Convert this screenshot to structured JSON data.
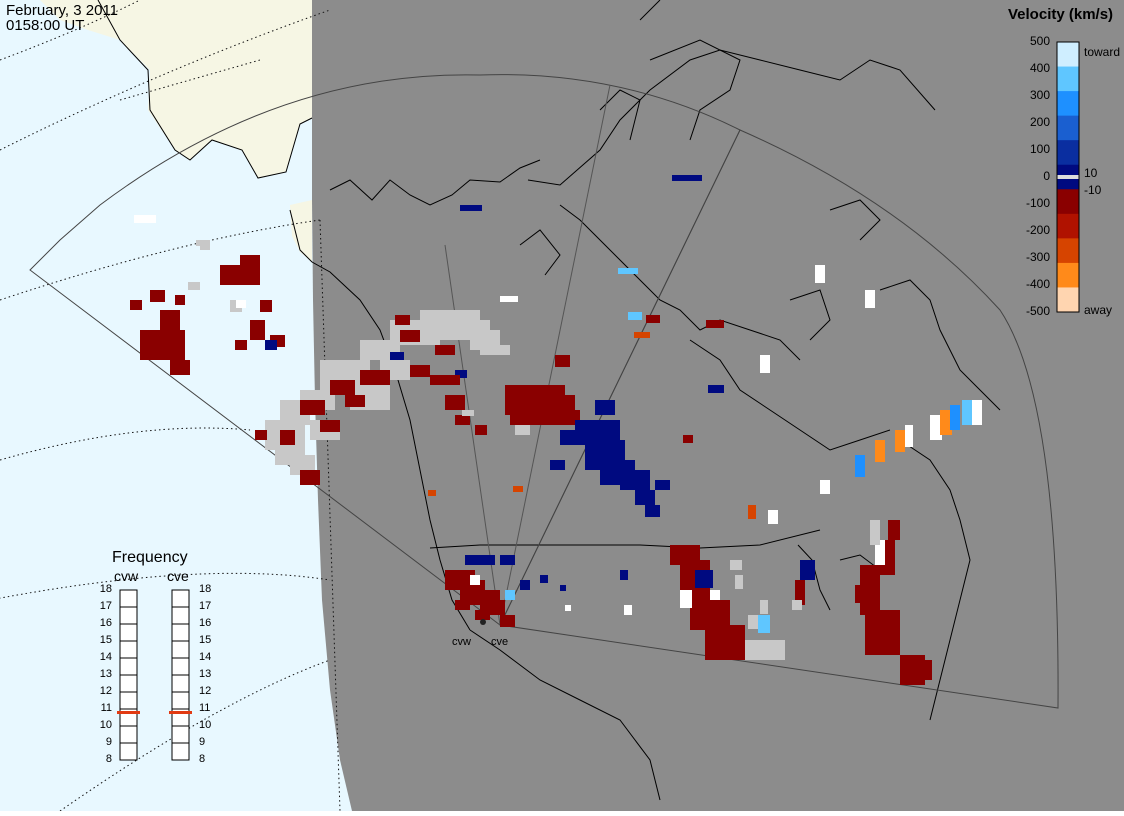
{
  "timestamp": {
    "date": "February, 3 2011",
    "time": "0158:00 UT"
  },
  "colorbar": {
    "title": "Velocity (km/s)",
    "ticks": [
      "500",
      "400",
      "300",
      "200",
      "100",
      "0",
      "-100",
      "-200",
      "-300",
      "-400",
      "-500"
    ],
    "inner_labels": [
      "10",
      "-10"
    ],
    "toward_label": "toward",
    "away_label": "away",
    "colors": [
      "#cfeeff",
      "#5fc6ff",
      "#1e90ff",
      "#1a5fd0",
      "#0a2ea0",
      "#000a80",
      "#8a0000",
      "#b01200",
      "#d64400",
      "#ff8a1a",
      "#ffd5b0"
    ]
  },
  "frequency": {
    "title": "Frequency",
    "radars": [
      {
        "name": "cvw",
        "value": 11
      },
      {
        "name": "cve",
        "value": 11
      }
    ],
    "scale": [
      "18",
      "17",
      "16",
      "15",
      "14",
      "13",
      "12",
      "11",
      "10",
      "9",
      "8"
    ]
  },
  "radar_sites": [
    {
      "name": "cvw"
    },
    {
      "name": "cve"
    }
  ],
  "colors": {
    "night": "#8c8c8c",
    "ocean_day": "#e8f8ff",
    "land_day": "#f6f6e4",
    "ground_scatter": "#c8c8c8",
    "away": "#8a0000",
    "toward": "#000a80",
    "frequency_marker": "#e23a12"
  }
}
